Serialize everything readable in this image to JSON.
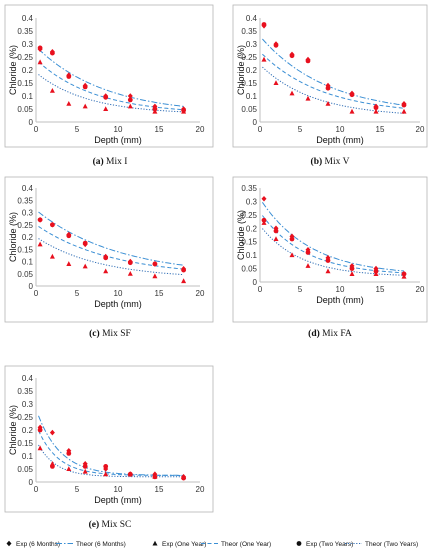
{
  "chart_data": [
    {
      "type": "scatter",
      "caption_tag": "(a)",
      "caption_text": "Mix I",
      "xlabel": "Depth (mm)",
      "ylabel": "Chloride (%)",
      "xlim": [
        0,
        20
      ],
      "ylim": [
        0,
        0.4
      ],
      "xticks": [
        "0",
        "5",
        "10",
        "15",
        "20"
      ],
      "yticks": [
        "0",
        "0.05",
        "0.1",
        "0.15",
        "0.2",
        "0.25",
        "0.3",
        "0.35",
        "0.4"
      ],
      "x": [
        0.5,
        2,
        4,
        6,
        8.5,
        11.5,
        14.5,
        18
      ],
      "series": [
        {
          "marker": "diamond",
          "values": [
            0.28,
            0.27,
            0.18,
            0.14,
            0.1,
            0.1,
            0.06,
            0.05
          ]
        },
        {
          "marker": "triangle",
          "values": [
            0.23,
            0.12,
            0.07,
            0.06,
            0.05,
            0.06,
            0.04,
            0.04
          ]
        },
        {
          "marker": "circle",
          "values": [
            0.285,
            0.265,
            0.175,
            0.135,
            0.095,
            0.085,
            0.05,
            0.045
          ]
        }
      ],
      "fits": [
        {
          "style": "dashdot",
          "c0": 0.29,
          "k": 0.12,
          "base": 0.03
        },
        {
          "style": "dashed",
          "c0": 0.24,
          "k": 0.14,
          "base": 0.03
        },
        {
          "style": "dotted",
          "c0": 0.19,
          "k": 0.16,
          "base": 0.03
        }
      ]
    },
    {
      "type": "scatter",
      "caption_tag": "(b)",
      "caption_text": "Mix V",
      "xlabel": "Depth (mm)",
      "ylabel": "Chloride (%)",
      "xlim": [
        0,
        20
      ],
      "ylim": [
        0,
        0.4
      ],
      "xticks": [
        "0",
        "5",
        "10",
        "15",
        "20"
      ],
      "yticks": [
        "0",
        "0.05",
        "0.1",
        "0.15",
        "0.2",
        "0.25",
        "0.3",
        "0.35",
        "0.4"
      ],
      "x": [
        0.5,
        2,
        4,
        6,
        8.5,
        11.5,
        14.5,
        18
      ],
      "series": [
        {
          "marker": "diamond",
          "values": [
            0.37,
            0.3,
            0.26,
            0.24,
            0.14,
            0.11,
            0.06,
            0.07
          ]
        },
        {
          "marker": "triangle",
          "values": [
            0.24,
            0.15,
            0.11,
            0.09,
            0.07,
            0.04,
            0.04,
            0.04
          ]
        },
        {
          "marker": "circle",
          "values": [
            0.375,
            0.295,
            0.255,
            0.235,
            0.13,
            0.105,
            0.055,
            0.065
          ]
        }
      ],
      "fits": [
        {
          "style": "dashdot",
          "c0": 0.33,
          "k": 0.12,
          "base": 0.03
        },
        {
          "style": "dashed",
          "c0": 0.27,
          "k": 0.13,
          "base": 0.03
        },
        {
          "style": "dotted",
          "c0": 0.22,
          "k": 0.15,
          "base": 0.02
        }
      ]
    },
    {
      "type": "scatter",
      "caption_tag": "(c)",
      "caption_text": "Mix SF",
      "xlabel": "Depth (mm)",
      "ylabel": "Chloride (%)",
      "xlim": [
        0,
        20
      ],
      "ylim": [
        0,
        0.4
      ],
      "xticks": [
        "0",
        "5",
        "10",
        "15",
        "20"
      ],
      "yticks": [
        "0",
        "0.05",
        "0.1",
        "0.15",
        "0.2",
        "0.25",
        "0.3",
        "0.35",
        "0.4"
      ],
      "x": [
        0.5,
        2,
        4,
        6,
        8.5,
        11.5,
        14.5,
        18
      ],
      "series": [
        {
          "marker": "diamond",
          "values": [
            0.27,
            0.25,
            0.21,
            0.17,
            0.12,
            0.1,
            0.09,
            0.07
          ]
        },
        {
          "marker": "triangle",
          "values": [
            0.17,
            0.12,
            0.09,
            0.08,
            0.06,
            0.05,
            0.04,
            0.02
          ]
        },
        {
          "marker": "circle",
          "values": [
            0.27,
            0.25,
            0.205,
            0.175,
            0.115,
            0.095,
            0.09,
            0.065
          ]
        }
      ],
      "fits": [
        {
          "style": "dashdot",
          "c0": 0.31,
          "k": 0.1,
          "base": 0.04
        },
        {
          "style": "dashed",
          "c0": 0.25,
          "k": 0.11,
          "base": 0.04
        },
        {
          "style": "dotted",
          "c0": 0.2,
          "k": 0.13,
          "base": 0.03
        }
      ]
    },
    {
      "type": "scatter",
      "caption_tag": "(d)",
      "caption_text": "Mix FA",
      "xlabel": "Depth (mm)",
      "ylabel": "Chloride (%)",
      "xlim": [
        0,
        20
      ],
      "ylim": [
        0,
        0.35
      ],
      "xticks": [
        "0",
        "5",
        "10",
        "15",
        "20"
      ],
      "yticks": [
        "0",
        "0.05",
        "0.1",
        "0.15",
        "0.2",
        "0.25",
        "0.3",
        "0.35"
      ],
      "x": [
        0.5,
        2,
        4,
        6,
        8.5,
        11.5,
        14.5,
        18
      ],
      "series": [
        {
          "marker": "diamond",
          "values": [
            0.31,
            0.2,
            0.17,
            0.12,
            0.09,
            0.06,
            0.05,
            0.03
          ]
        },
        {
          "marker": "triangle",
          "values": [
            0.22,
            0.16,
            0.1,
            0.06,
            0.04,
            0.03,
            0.03,
            0.02
          ]
        },
        {
          "marker": "circle",
          "values": [
            0.23,
            0.19,
            0.16,
            0.11,
            0.08,
            0.05,
            0.04,
            0.03
          ]
        }
      ],
      "fits": [
        {
          "style": "dashdot",
          "c0": 0.31,
          "k": 0.16,
          "base": 0.025
        },
        {
          "style": "dashed",
          "c0": 0.26,
          "k": 0.18,
          "base": 0.025
        },
        {
          "style": "dotted",
          "c0": 0.21,
          "k": 0.2,
          "base": 0.02
        }
      ]
    },
    {
      "type": "scatter",
      "caption_tag": "(e)",
      "caption_text": "Mix SC",
      "xlabel": "Depth (mm)",
      "ylabel": "Chloride (%)",
      "xlim": [
        0,
        20
      ],
      "ylim": [
        0,
        0.4
      ],
      "xticks": [
        "0",
        "5",
        "10",
        "15",
        "20"
      ],
      "yticks": [
        "0",
        "0.05",
        "0.1",
        "0.15",
        "0.2",
        "0.25",
        "0.3",
        "0.35",
        "0.4"
      ],
      "x": [
        0.5,
        2,
        4,
        6,
        8.5,
        11.5,
        14.5,
        18
      ],
      "series": [
        {
          "marker": "diamond",
          "values": [
            0.21,
            0.19,
            0.12,
            0.07,
            0.05,
            0.03,
            0.03,
            0.02
          ]
        },
        {
          "marker": "triangle",
          "values": [
            0.13,
            0.07,
            0.05,
            0.04,
            0.03,
            0.03,
            0.02,
            0.02
          ]
        },
        {
          "marker": "circle",
          "values": [
            0.2,
            0.06,
            0.11,
            0.06,
            0.06,
            0.03,
            0.02,
            0.015
          ]
        }
      ],
      "fits": [
        {
          "style": "dashdot",
          "c0": 0.28,
          "k": 0.35,
          "base": 0.025
        },
        {
          "style": "dashed",
          "c0": 0.22,
          "k": 0.4,
          "base": 0.025
        },
        {
          "style": "dotted",
          "c0": 0.16,
          "k": 0.45,
          "base": 0.02
        }
      ]
    }
  ],
  "legend": [
    {
      "label": "Exp (6 Months)",
      "marker": "diamond"
    },
    {
      "label": "Theor (6 Months)",
      "line": "dashdot"
    },
    {
      "label": "Exp (One Year)",
      "marker": "triangle"
    },
    {
      "label": "Theor (One Year)",
      "line": "dashed"
    },
    {
      "label": "Exp (Two Years)",
      "marker": "circle"
    },
    {
      "label": "Theor (Two Years)",
      "line": "dotted"
    }
  ],
  "colors": {
    "exp_marker": "#e8101e",
    "legend_marker": "#111111",
    "fit_line": "#3b8fd4",
    "dotted_line": "#2f6db5",
    "axis": "#bfbfbf",
    "text": "#333333"
  }
}
